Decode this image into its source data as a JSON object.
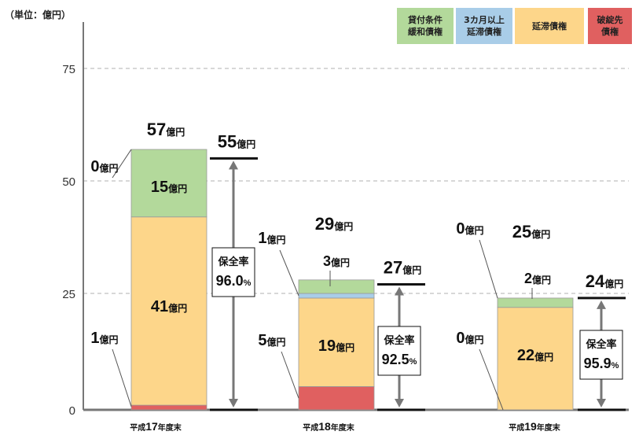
{
  "unit_label": "（単位：億円）",
  "legend": [
    {
      "label_line1": "貸付条件",
      "label_line2": "緩和債権",
      "color": "#b3d99b"
    },
    {
      "label_line1": "3カ月以上",
      "label_line2": "延滞債権",
      "color": "#a9cde8"
    },
    {
      "label_line1": "延滞債権",
      "label_line2": "",
      "color": "#fdd68a"
    },
    {
      "label_line1": "破綻先",
      "label_line2": "債権",
      "color": "#e06060"
    }
  ],
  "chart_data": {
    "type": "bar",
    "stacked": true,
    "categories": [
      "平成17年度末",
      "平成18年度末",
      "平成19年度末"
    ],
    "ylim": [
      0,
      80
    ],
    "yticks": [
      0,
      25,
      50,
      75
    ],
    "grid": true,
    "legend_position": "top-right",
    "value_unit": "億円",
    "series": [
      {
        "name": "破綻先債権",
        "color": "#e06060",
        "values": [
          1,
          5,
          0
        ]
      },
      {
        "name": "延滞債権",
        "color": "#fdd68a",
        "values": [
          41,
          19,
          22
        ]
      },
      {
        "name": "3カ月以上延滞債権",
        "color": "#a9cde8",
        "values": [
          0,
          1,
          0
        ]
      },
      {
        "name": "貸付条件緩和債権",
        "color": "#b3d99b",
        "values": [
          15,
          3,
          2
        ]
      }
    ],
    "totals": [
      57,
      29,
      25
    ],
    "coverage_amounts": [
      55,
      27,
      24
    ],
    "coverage_title": "保全率",
    "coverage_rates": [
      "96.0",
      "92.5",
      "95.9"
    ],
    "coverage_rate_unit": "%"
  }
}
